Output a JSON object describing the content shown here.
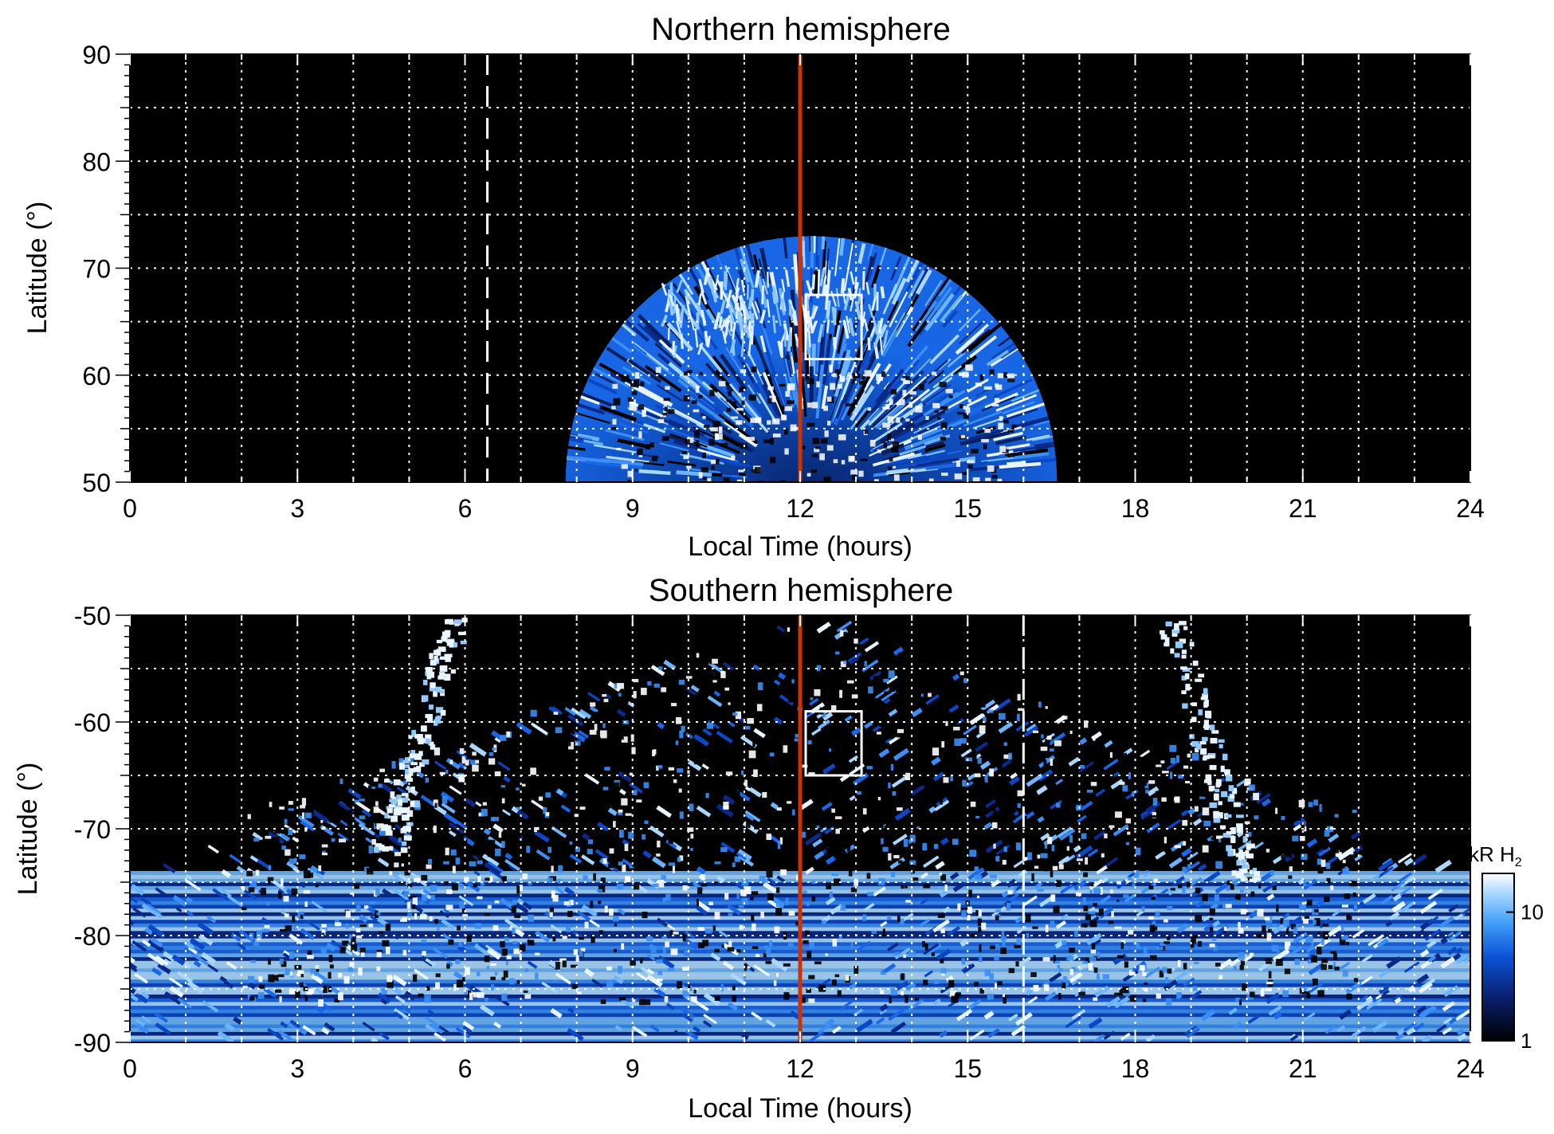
{
  "chart_data": [
    {
      "type": "heatmap",
      "title": "Northern hemisphere",
      "xlabel": "Local Time (hours)",
      "ylabel": "Latitude (°)",
      "xlim": [
        0,
        24
      ],
      "ylim": [
        50,
        90
      ],
      "x_ticks": [
        0,
        3,
        6,
        9,
        12,
        15,
        18,
        21,
        24
      ],
      "x_tick_labels": [
        "0",
        "3",
        "6",
        "9",
        "12",
        "15",
        "18",
        "21",
        "24"
      ],
      "y_ticks": [
        50,
        60,
        70,
        80,
        90
      ],
      "y_tick_labels": [
        "50",
        "60",
        "70",
        "80",
        "90"
      ],
      "grid": true,
      "background_color": "#000000",
      "emission_region": {
        "local_time_range": [
          7.8,
          16.6
        ],
        "max_latitude": 73
      },
      "bright_band": {
        "latitude": 65,
        "local_time_range": [
          9.5,
          13.5
        ]
      },
      "noon_line": {
        "local_time": 12,
        "color": "#cc3300"
      },
      "dashed_line": {
        "local_time": 6.4,
        "color": "#ffffff"
      },
      "box": {
        "local_time_range": [
          12.1,
          13.1
        ],
        "latitude_range": [
          61.5,
          67.5
        ]
      }
    },
    {
      "type": "heatmap",
      "title": "Southern hemisphere",
      "xlabel": "Local Time (hours)",
      "ylabel": "Latitude (°)",
      "xlim": [
        0,
        24
      ],
      "ylim": [
        -90,
        -50
      ],
      "x_ticks": [
        0,
        3,
        6,
        9,
        12,
        15,
        18,
        21,
        24
      ],
      "x_tick_labels": [
        "0",
        "3",
        "6",
        "9",
        "12",
        "15",
        "18",
        "21",
        "24"
      ],
      "y_ticks": [
        -90,
        -80,
        -70,
        -60,
        -50
      ],
      "y_tick_labels": [
        "-90",
        "-80",
        "-70",
        "-60",
        "-50"
      ],
      "grid": true,
      "background_color": "#000000",
      "emission_region": {
        "local_time_range": [
          0,
          24
        ],
        "min_latitude": -90
      },
      "bright_arcs": [
        {
          "local_time": 5.8,
          "latitude_range": [
            -72,
            -50
          ]
        },
        {
          "local_time": 18.6,
          "latitude_range": [
            -75,
            -50
          ]
        }
      ],
      "noon_line": {
        "local_time": 12,
        "color": "#cc3300"
      },
      "dashed_line": {
        "local_time": 16,
        "color": "#ffffff"
      },
      "box": {
        "local_time_range": [
          12.1,
          13.1
        ],
        "latitude_range": [
          -65,
          -59
        ]
      }
    }
  ],
  "colorbar": {
    "unit_label": "kR H",
    "unit_subscript": "2",
    "tick_labels": [
      "10",
      "1"
    ],
    "tick_values": [
      10,
      1
    ],
    "range": [
      1,
      20
    ],
    "scale": "log",
    "colors": [
      "#000000",
      "#0a1f6b",
      "#0b52d6",
      "#3f9df7",
      "#a9d8ff",
      "#ffffff"
    ]
  }
}
